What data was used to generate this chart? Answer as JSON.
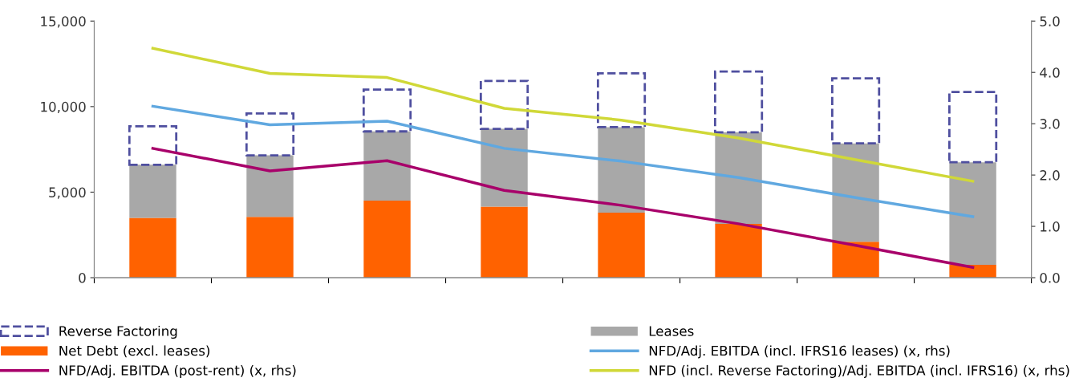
{
  "chart_data": {
    "type": "bar",
    "stacked": true,
    "categories": [
      null,
      null,
      null,
      null,
      null,
      null,
      null,
      null
    ],
    "series": [
      {
        "name": "Net Debt (excl. leases)",
        "color": "#ff6200",
        "values": [
          3500,
          3550,
          4500,
          4150,
          3800,
          3150,
          2100,
          750
        ]
      },
      {
        "name": "Leases",
        "color": "#a8a8a8",
        "values": [
          3100,
          3600,
          4050,
          4550,
          5000,
          5350,
          5750,
          6000
        ]
      },
      {
        "name": "Reverse Factoring",
        "color": "#4f4f9f",
        "line_style": "dashed",
        "values": [
          2250,
          2450,
          2450,
          2800,
          3150,
          3550,
          3800,
          4100
        ]
      },
      {
        "name": "NFD/Adj. EBITDA (incl. IFRS16 leases) (x, rhs)",
        "type": "line",
        "axis": "y2",
        "color": "#60a8e0",
        "values": [
          3.34,
          2.98,
          3.05,
          2.52,
          2.27,
          1.95,
          1.56,
          1.19
        ]
      },
      {
        "name": "NFD/Adj. EBITDA (post-rent) (x, rhs)",
        "type": "line",
        "axis": "y2",
        "color": "#a8006a",
        "values": [
          2.52,
          2.08,
          2.28,
          1.7,
          1.41,
          1.05,
          0.63,
          0.2
        ]
      },
      {
        "name": "NFD (incl. Reverse Factoring)/Adj. EBITDA (incl. IFRS16) (x, rhs)",
        "type": "line",
        "axis": "y2",
        "color": "#d0d838",
        "values": [
          4.47,
          3.98,
          3.9,
          3.3,
          3.07,
          2.72,
          2.3,
          1.88
        ]
      }
    ],
    "ylim": [
      0,
      15000
    ],
    "yticks": [
      {
        "value": 0,
        "label": "0"
      },
      {
        "value": 5000,
        "label": "5,000"
      },
      {
        "value": 10000,
        "label": "10,000"
      },
      {
        "value": 15000,
        "label": "15,000"
      }
    ],
    "y2lim": [
      0,
      5
    ],
    "y2ticks": [
      {
        "value": 0,
        "label": "0.0"
      },
      {
        "value": 1,
        "label": "1.0"
      },
      {
        "value": 2,
        "label": "2.0"
      },
      {
        "value": 3,
        "label": "3.0"
      },
      {
        "value": 4,
        "label": "4.0"
      },
      {
        "value": 5,
        "label": "5.0"
      }
    ],
    "tick_labels": "y",
    "legend": "bottom",
    "grid": false
  }
}
